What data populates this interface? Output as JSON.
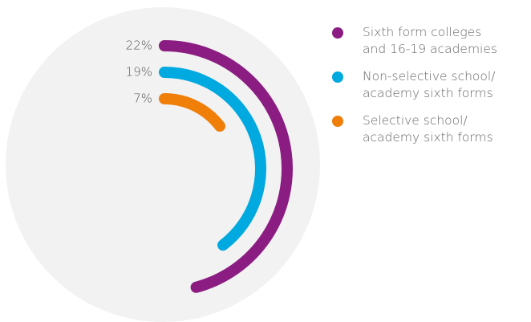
{
  "chart_data": {
    "type": "radial-bar",
    "series": [
      {
        "name": "Sixth form colleges\nand 16-19 academies",
        "color": "#8b1d82",
        "values": [
          22
        ],
        "value_labels": [
          "22%"
        ]
      },
      {
        "name": "Non-selective school/\nacademy sixth forms",
        "color": "#00a9e0",
        "values": [
          19
        ],
        "value_labels": [
          "19%"
        ]
      },
      {
        "name": "Selective school/\nacademy sixth forms",
        "color": "#f07f09",
        "values": [
          7
        ],
        "value_labels": [
          "7%"
        ]
      }
    ]
  }
}
